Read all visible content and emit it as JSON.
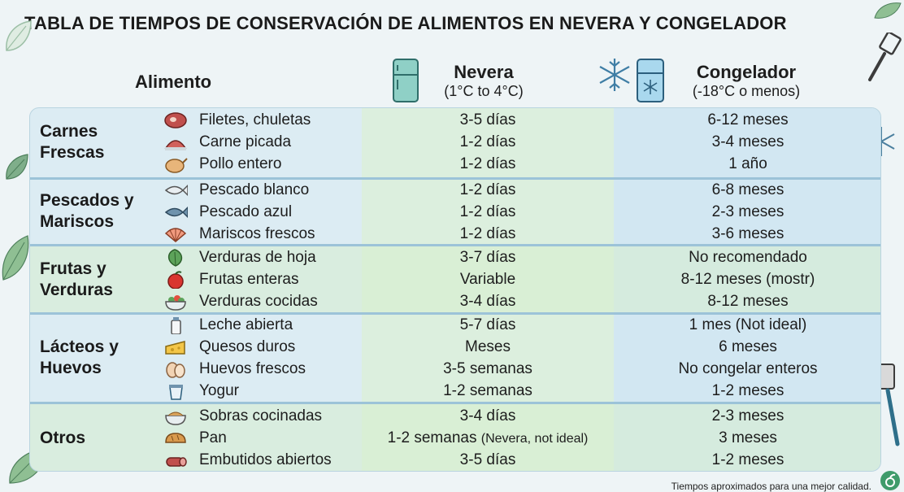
{
  "title": "TABLA DE TIEMPOS DE CONSERVACIÓN DE ALIMENTOS EN NEVERA Y CONGELADOR",
  "header": {
    "alimento": "Alimento",
    "nevera_title": "Nevera",
    "nevera_sub": "(1°C to 4°C)",
    "congelador_title": "Congelador",
    "congelador_sub": "(-18°C o menos)"
  },
  "groups": [
    {
      "category": "Carnes Frescas",
      "rows": [
        {
          "food": "Filetes, chuletas",
          "icon": "steak-icon",
          "nevera": "3-5 días",
          "congelador": "6-12 meses"
        },
        {
          "food": "Carne picada",
          "icon": "ground-meat-icon",
          "nevera": "1-2 días",
          "congelador": "3-4 meses"
        },
        {
          "food": "Pollo entero",
          "icon": "chicken-icon",
          "nevera": "1-2 días",
          "congelador": "1 año"
        }
      ]
    },
    {
      "category": "Pescados y Mariscos",
      "rows": [
        {
          "food": "Pescado blanco",
          "icon": "white-fish-icon",
          "nevera": "1-2 días",
          "congelador": "6-8 meses"
        },
        {
          "food": "Pescado azul",
          "icon": "blue-fish-icon",
          "nevera": "1-2 días",
          "congelador": "2-3 meses"
        },
        {
          "food": "Mariscos frescos",
          "icon": "shell-icon",
          "nevera": "1-2 días",
          "congelador": "3-6 meses"
        }
      ]
    },
    {
      "category": "Frutas y Verduras",
      "rows": [
        {
          "food": "Verduras de hoja",
          "icon": "leafy-greens-icon",
          "nevera": "3-7 días",
          "congelador": "No recomendado"
        },
        {
          "food": "Frutas enteras",
          "icon": "apple-icon",
          "nevera": "Variable",
          "congelador": "8-12 meses (mostr)"
        },
        {
          "food": "Verduras cocidas",
          "icon": "salad-bowl-icon",
          "nevera": "3-4 días",
          "congelador": "8-12 meses"
        }
      ]
    },
    {
      "category": "Lácteos y Huevos",
      "rows": [
        {
          "food": "Leche abierta",
          "icon": "milk-icon",
          "nevera": "5-7 días",
          "congelador": "1 mes (Not ideal)"
        },
        {
          "food": "Quesos duros",
          "icon": "cheese-icon",
          "nevera": "Meses",
          "congelador": "6 meses"
        },
        {
          "food": "Huevos frescos",
          "icon": "egg-icon",
          "nevera": "3-5 semanas",
          "congelador": "No congelar enteros"
        },
        {
          "food": "Yogur",
          "icon": "yogurt-icon",
          "nevera": "1-2 semanas",
          "congelador": "1-2 meses"
        }
      ]
    },
    {
      "category": "Otros",
      "rows": [
        {
          "food": "Sobras cocinadas",
          "icon": "leftovers-bowl-icon",
          "nevera": "3-4 días",
          "congelador": "2-3 meses"
        },
        {
          "food": "Pan",
          "icon": "bread-icon",
          "nevera": "1-2 semanas",
          "nevera_note": "(Nevera, not ideal)",
          "congelador": "3 meses"
        },
        {
          "food": "Embutidos abiertos",
          "icon": "sausage-icon",
          "nevera": "3-5 días",
          "congelador": "1-2 meses"
        }
      ]
    }
  ],
  "footnote": "Tiempos aproximados para una mejor calidad."
}
